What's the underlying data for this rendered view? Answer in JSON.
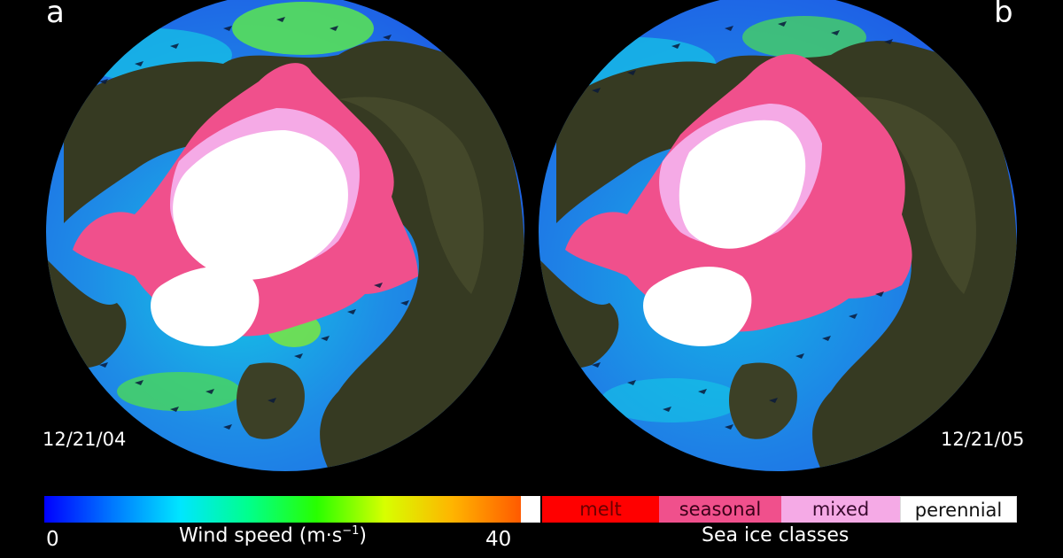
{
  "panels": [
    {
      "letter": "a",
      "date": "12/21/04"
    },
    {
      "letter": "b",
      "date": "12/21/05"
    }
  ],
  "wind_scale": {
    "min_label": "0",
    "max_label": "40",
    "title": "Wind speed (m·s",
    "title_superscript": "−1",
    "title_close": ")",
    "colors": [
      "#0000ff",
      "#0078ff",
      "#00e6ff",
      "#00ff8c",
      "#28ff00",
      "#d7ff00",
      "#ffb400",
      "#ff5a00"
    ]
  },
  "ice_scale": {
    "title": "Sea ice classes",
    "classes": [
      {
        "label": "melt",
        "color": "#ff0000"
      },
      {
        "label": "seasonal",
        "color": "#f0508c"
      },
      {
        "label": "mixed",
        "color": "#f5aae6"
      },
      {
        "label": "perennial",
        "color": "#ffffff"
      }
    ]
  },
  "map_colors": {
    "ocean_low": "#1e5ae6",
    "ocean_mid": "#14c8e6",
    "ocean_high": "#5ae650",
    "land": "#363a22",
    "land_light": "#4a4e2e",
    "perennial": "#ffffff",
    "seasonal": "#f0508c",
    "mixed": "#f5aae6",
    "melt": "#ff0000",
    "arrow": "#0a1a3a"
  }
}
